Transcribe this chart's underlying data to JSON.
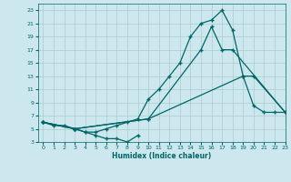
{
  "title": "",
  "xlabel": "Humidex (Indice chaleur)",
  "ylabel": "",
  "bg_color": "#cce8ee",
  "grid_color": "#aacccc",
  "line_color": "#006666",
  "xlim": [
    -0.5,
    23
  ],
  "ylim": [
    3,
    24
  ],
  "xticks": [
    0,
    1,
    2,
    3,
    4,
    5,
    6,
    7,
    8,
    9,
    10,
    11,
    12,
    13,
    14,
    15,
    16,
    17,
    18,
    19,
    20,
    21,
    22,
    23
  ],
  "yticks": [
    3,
    5,
    7,
    9,
    11,
    13,
    15,
    17,
    19,
    21,
    23
  ],
  "line1_x": [
    0,
    1,
    2,
    3,
    4,
    5,
    6,
    7,
    8,
    9,
    10,
    11,
    12,
    13,
    14,
    15,
    16,
    17,
    18,
    19,
    20,
    21,
    22,
    23
  ],
  "line1_y": [
    6,
    5.5,
    5.5,
    5,
    4.5,
    4.5,
    5,
    5.5,
    6,
    6.5,
    9.5,
    11,
    13,
    15,
    19,
    21,
    21.5,
    23,
    20,
    13,
    8.5,
    7.5,
    7.5,
    7.5
  ],
  "line2_x": [
    0,
    3,
    10,
    15,
    16,
    17,
    18,
    23
  ],
  "line2_y": [
    6,
    5,
    6.5,
    17,
    20.5,
    17,
    17,
    7.5
  ],
  "line3_x": [
    0,
    3,
    10,
    19,
    20,
    23
  ],
  "line3_y": [
    6,
    5,
    6.5,
    13,
    13,
    7.5
  ],
  "line4_x": [
    0,
    3,
    4,
    5,
    6,
    7,
    8,
    9
  ],
  "line4_y": [
    6,
    5,
    4.5,
    4,
    3.5,
    3.5,
    3,
    4
  ],
  "marker_size": 2.5,
  "lw": 0.9,
  "figsize": [
    3.2,
    2.0
  ],
  "dpi": 100
}
